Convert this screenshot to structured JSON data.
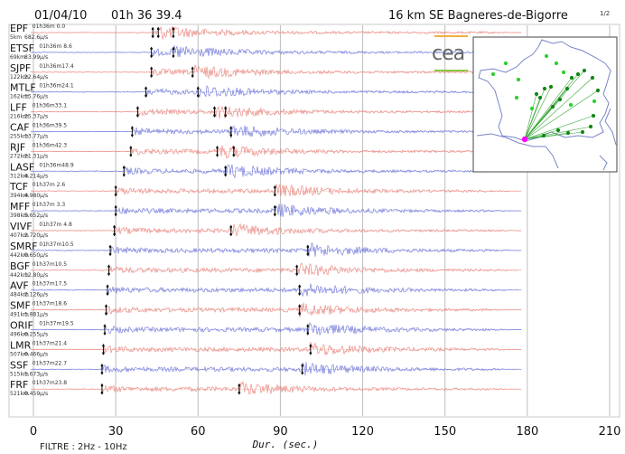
{
  "header": {
    "date": "01/04/10",
    "time": "01h 36 39.4",
    "location": "16 km SE Bagneres-de-Bigorre",
    "page": "1/2"
  },
  "logo": {
    "text": "cea"
  },
  "footer": {
    "filter": "FILTRE : 2Hz - 10Hz",
    "xlabel": "Dur.  (sec.)"
  },
  "colors": {
    "red": "#e8837b",
    "blue": "#6b73d8",
    "grid": "#bdbdbd",
    "epicenter": "#ff00ff",
    "station": "#2bd12b"
  },
  "chart_data": {
    "type": "seismogram",
    "xlabel": "Dur.  (sec.)",
    "xlim": [
      0,
      210
    ],
    "xticks": [
      0,
      30,
      60,
      90,
      120,
      150,
      180,
      210
    ],
    "stations": [
      {
        "name": "EPF",
        "dist": "5km",
        "amp": "682.6µ/s",
        "time": "01h36m 0.0",
        "color": "red",
        "p": 43.5,
        "s": 45.5,
        "s2": 51
      },
      {
        "name": "ETSF",
        "dist": "69km",
        "amp": "83.99µ/s",
        "time": "01h36m 8.6",
        "color": "blue",
        "p": 43,
        "s": 51
      },
      {
        "name": "SJPF",
        "dist": "122km",
        "amp": "22.64µ/s",
        "time": "01h36m17.4",
        "color": "red",
        "p": 43,
        "s": 58
      },
      {
        "name": "MTLF",
        "dist": "162km",
        "amp": "15.76µ/s",
        "time": "01h36m24.1",
        "color": "blue",
        "p": 41,
        "s": 60
      },
      {
        "name": "LFF",
        "dist": "216km",
        "amp": "25.37µ/s",
        "time": "01h36m33.1",
        "color": "red",
        "p": 38,
        "s": 66,
        "s2": 70
      },
      {
        "name": "CAF",
        "dist": "255km",
        "amp": "13.77µ/s",
        "time": "01h36m39.5",
        "color": "blue",
        "p": 36,
        "s": 72
      },
      {
        "name": "RJF",
        "dist": "272km",
        "amp": "21.31µ/s",
        "time": "01h36m42.3",
        "color": "red",
        "p": 35.5,
        "s": 67,
        "s2": 73
      },
      {
        "name": "LASF",
        "dist": "312km",
        "amp": "4.214µ/s",
        "time": "01h36m48.9",
        "color": "blue",
        "p": 33,
        "s": 70
      },
      {
        "name": "TCF",
        "dist": "394km",
        "amp": "4.980µ/s",
        "time": "01h37m 2.6",
        "color": "red",
        "p": 30,
        "s": 88
      },
      {
        "name": "MFF",
        "dist": "398km",
        "amp": "5.652µ/s",
        "time": "01h37m 3.3",
        "color": "blue",
        "p": 30,
        "s": 88
      },
      {
        "name": "VIVF",
        "dist": "407km",
        "amp": "2.720µ/s",
        "time": "01h37m 4.8",
        "color": "red",
        "p": 29.5,
        "s": 72
      },
      {
        "name": "SMRF",
        "dist": "442km",
        "amp": "0.650µ/s",
        "time": "01h37m10.5",
        "color": "blue",
        "p": 28,
        "s": 100
      },
      {
        "name": "BGF",
        "dist": "442km",
        "amp": "12.80µ/s",
        "time": "01h37m10.5",
        "color": "red",
        "p": 27.5,
        "s": 96
      },
      {
        "name": "AVF",
        "dist": "484km",
        "amp": "2.126µ/s",
        "time": "01h37m17.5",
        "color": "blue",
        "p": 27,
        "s": 97
      },
      {
        "name": "SMF",
        "dist": "491km",
        "amp": "1.881µ/s",
        "time": "01h37m18.6",
        "color": "red",
        "p": 26.5,
        "s": 97
      },
      {
        "name": "ORIF",
        "dist": "496km",
        "amp": "0.255µ/s",
        "time": "01h37m19.5",
        "color": "blue",
        "p": 26,
        "s": 100
      },
      {
        "name": "LMR",
        "dist": "507km",
        "amp": "0.466µ/s",
        "time": "01h37m21.4",
        "color": "red",
        "p": 25.5,
        "s": 101
      },
      {
        "name": "SSF",
        "dist": "515km",
        "amp": "1.673µ/s",
        "time": "01h37m22.7",
        "color": "blue",
        "p": 25,
        "s": 98
      },
      {
        "name": "FRF",
        "dist": "521km",
        "amp": "0.459µ/s",
        "time": "01h37m23.8",
        "color": "red",
        "p": 25,
        "s": 75
      }
    ]
  }
}
